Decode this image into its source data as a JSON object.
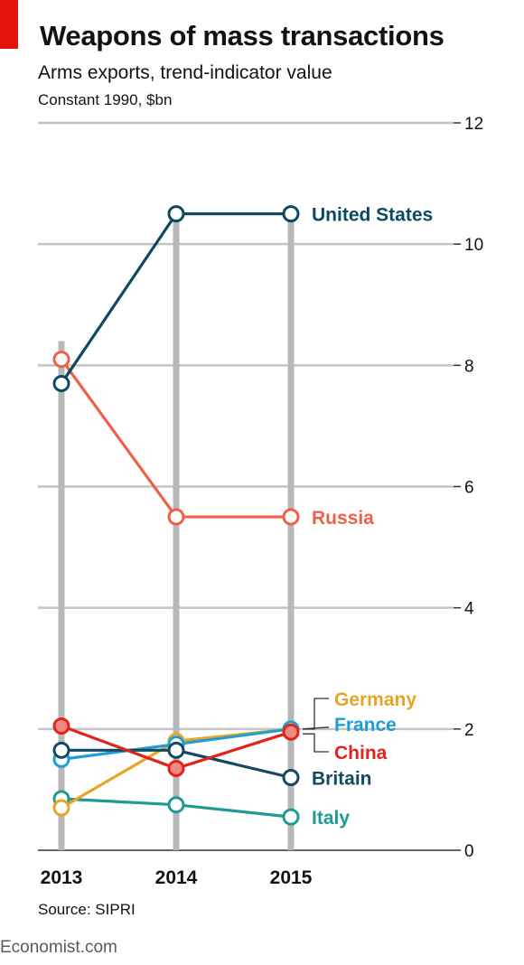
{
  "header": {
    "title": "Weapons of mass transactions",
    "subtitle": "Arms exports, trend-indicator value",
    "units": "Constant 1990, $bn"
  },
  "source": "Source: SIPRI",
  "footer": "Economist.com",
  "colors": {
    "brand_red": "#e3120b",
    "grid": "#c4c4c4",
    "year_column": "#b8b8b8",
    "United States": "#0c4a63",
    "Russia": "#ec6147",
    "Germany": "#e8a524",
    "France": "#1e9ed6",
    "China": "#e3231b",
    "Britain": "#124a60",
    "Italy": "#1f9a94"
  },
  "chart_data": {
    "type": "line",
    "x": [
      "2013",
      "2014",
      "2015"
    ],
    "ylim": [
      0,
      12
    ],
    "yticks": [
      0,
      2,
      4,
      6,
      8,
      10,
      12
    ],
    "ytick_labels": [
      "0",
      "2",
      "4",
      "6",
      "8",
      "10",
      "12"
    ],
    "y_axis_side": "right",
    "grid": true,
    "series": [
      {
        "name": "Russia",
        "values": [
          8.1,
          5.5,
          5.5
        ],
        "markers": "open"
      },
      {
        "name": "United States",
        "values": [
          7.7,
          10.5,
          10.5
        ],
        "markers": "open"
      },
      {
        "name": "Germany",
        "values": [
          0.7,
          1.8,
          2.0
        ],
        "markers": "open"
      },
      {
        "name": "France",
        "values": [
          1.5,
          1.75,
          2.0
        ],
        "markers": "open"
      },
      {
        "name": "Italy",
        "values": [
          0.85,
          0.75,
          0.55
        ],
        "markers": "open"
      },
      {
        "name": "Britain",
        "values": [
          1.65,
          1.65,
          1.2
        ],
        "markers": "open"
      },
      {
        "name": "China",
        "values": [
          2.05,
          1.35,
          1.95
        ],
        "markers": "filled"
      }
    ]
  }
}
